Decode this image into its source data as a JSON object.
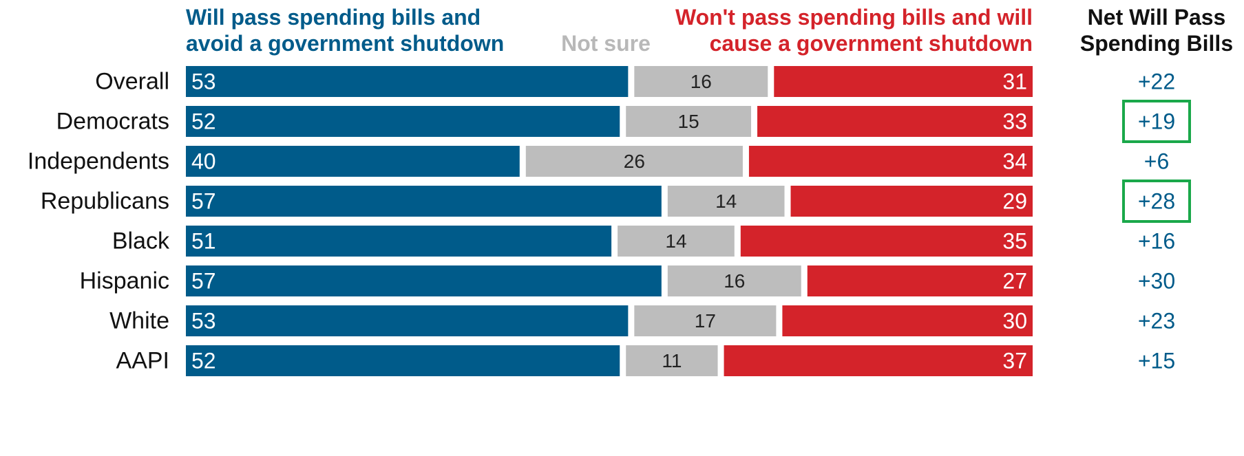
{
  "chart_data": {
    "type": "bar",
    "stacked": true,
    "orientation": "horizontal",
    "legend": {
      "will": "Will pass spending bills and avoid a government shutdown",
      "will_lines": [
        "Will pass spending bills and",
        "avoid a government shutdown"
      ],
      "notsure": "Not sure",
      "wont": "Won't pass spending bills and will cause a government shutdown",
      "wont_lines": [
        "Won't pass spending bills and will",
        "cause a government shutdown"
      ],
      "net": "Net Will Pass Spending Bills",
      "net_lines": [
        "Net Will Pass",
        "Spending Bills"
      ]
    },
    "colors": {
      "will": "#005b8a",
      "notsure": "#bdbdbd",
      "wont": "#d4232a",
      "net_text": "#005b8a",
      "highlight": "#1aa84a",
      "will_header": "#005b8a",
      "notsure_header": "#b8b8b8",
      "wont_header": "#d4232a"
    },
    "categories": [
      "Overall",
      "Democrats",
      "Independents",
      "Republicans",
      "Black",
      "Hispanic",
      "White",
      "AAPI"
    ],
    "groups": [
      [
        0
      ],
      [
        1,
        2,
        3
      ],
      [
        4,
        5,
        6,
        7
      ]
    ],
    "series": [
      {
        "name": "Will pass spending bills and avoid a government shutdown",
        "key": "will",
        "values": [
          53,
          52,
          40,
          57,
          51,
          57,
          53,
          52
        ]
      },
      {
        "name": "Not sure",
        "key": "notsure",
        "values": [
          16,
          15,
          26,
          14,
          14,
          16,
          17,
          11
        ]
      },
      {
        "name": "Won't pass spending bills and will cause a government shutdown",
        "key": "wont",
        "values": [
          31,
          33,
          34,
          29,
          35,
          27,
          30,
          37
        ]
      }
    ],
    "net_labels": [
      "+22",
      "+19",
      "+6",
      "+28",
      "+16",
      "+30",
      "+23",
      "+15"
    ],
    "highlighted": [
      "Democrats",
      "Republicans"
    ],
    "xlim": [
      0,
      100
    ]
  }
}
